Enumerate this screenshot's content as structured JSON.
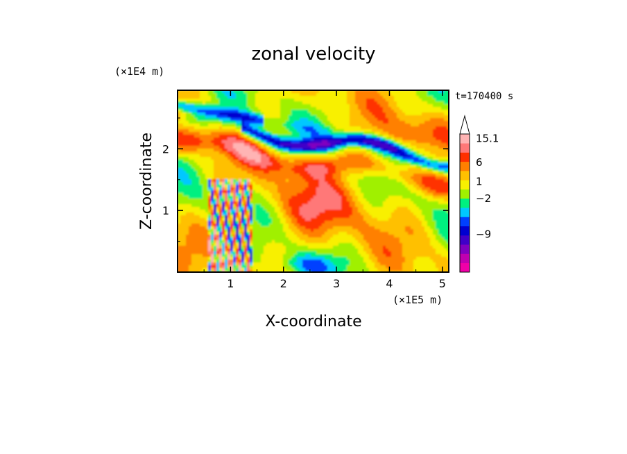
{
  "chart_data": {
    "type": "heatmap",
    "title": "zonal velocity",
    "xlabel": "X-coordinate",
    "ylabel": "Z-coordinate",
    "x_multiplier": "(×1E5 m)",
    "y_multiplier": "(×1E4 m)",
    "time_label": "t=170400 s",
    "xlim": [
      0,
      5.12
    ],
    "ylim": [
      0,
      2.95
    ],
    "x_ticks": [
      1,
      2,
      3,
      4,
      5
    ],
    "y_ticks": [
      1,
      2
    ],
    "colorbar": {
      "levels": [
        {
          "color": "#f000a8"
        },
        {
          "color": "#c000b0"
        },
        {
          "color": "#8000c0"
        },
        {
          "color": "#4000c8"
        },
        {
          "color": "#0000d0"
        },
        {
          "color": "#0040ff"
        },
        {
          "color": "#00c8ff"
        },
        {
          "color": "#00f080"
        },
        {
          "color": "#a0f000"
        },
        {
          "color": "#f8f000"
        },
        {
          "color": "#ffc000"
        },
        {
          "color": "#ff8000"
        },
        {
          "color": "#ff3000"
        },
        {
          "color": "#ff7878"
        },
        {
          "color": "#ffb4b4"
        }
      ],
      "tick_labels": [
        {
          "text": "15.1",
          "level": 14.5
        },
        {
          "text": "6",
          "level": 11.9
        },
        {
          "text": "1",
          "level": 9.85
        },
        {
          "text": "−2",
          "level": 8.0
        },
        {
          "text": "−9",
          "level": 4.1
        }
      ],
      "extend": "max"
    }
  }
}
